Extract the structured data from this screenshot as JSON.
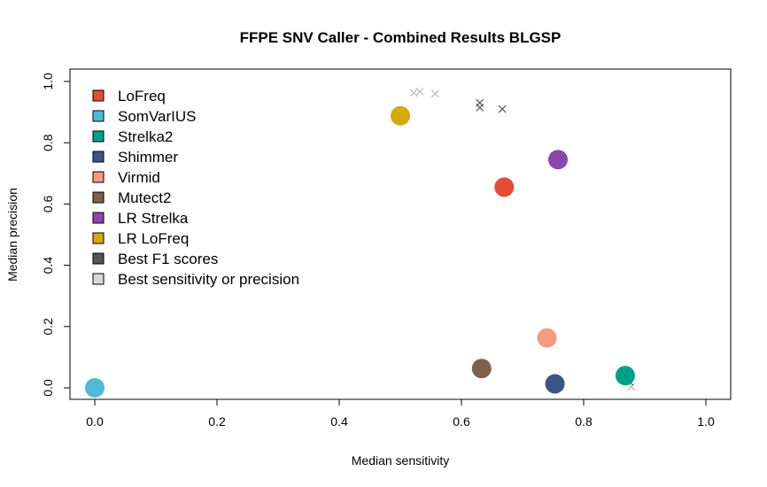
{
  "chart_data": {
    "type": "scatter",
    "title": "FFPE SNV Caller - Combined Results BLGSP",
    "xlabel": "Median sensitivity",
    "ylabel": "Median precision",
    "xlim": [
      0,
      1
    ],
    "ylim": [
      0,
      1
    ],
    "xticks": [
      "0.0",
      "0.2",
      "0.4",
      "0.6",
      "0.8",
      "1.0"
    ],
    "yticks": [
      "0.0",
      "0.2",
      "0.4",
      "0.6",
      "0.8",
      "1.0"
    ],
    "grid": false,
    "legend_position": "top-left",
    "series": [
      {
        "name": "LoFreq",
        "color": "#E64B35",
        "points": [
          {
            "x": 0.67,
            "y": 0.655
          }
        ]
      },
      {
        "name": "SomVarIUS",
        "color": "#4DBBD5",
        "points": [
          {
            "x": 0.0,
            "y": 0.0
          }
        ]
      },
      {
        "name": "Strelka2",
        "color": "#00A087",
        "points": [
          {
            "x": 0.868,
            "y": 0.04
          }
        ]
      },
      {
        "name": "Shimmer",
        "color": "#3C5488",
        "points": [
          {
            "x": 0.753,
            "y": 0.013
          }
        ]
      },
      {
        "name": "Virmid",
        "color": "#F39B7F",
        "points": [
          {
            "x": 0.74,
            "y": 0.163
          }
        ]
      },
      {
        "name": "Mutect2",
        "color": "#7E6148",
        "points": [
          {
            "x": 0.633,
            "y": 0.063
          }
        ]
      },
      {
        "name": "LR Strelka",
        "color": "#8E44AD",
        "points": [
          {
            "x": 0.758,
            "y": 0.745
          }
        ]
      },
      {
        "name": "LR LoFreq",
        "color": "#D4A90C",
        "points": [
          {
            "x": 0.5,
            "y": 0.888
          }
        ]
      }
    ],
    "best_f1_scores": {
      "name": "Best F1 scores",
      "color": "#555555",
      "points": [
        {
          "x": 0.63,
          "y": 0.93
        },
        {
          "x": 0.63,
          "y": 0.915
        },
        {
          "x": 0.667,
          "y": 0.91
        },
        {
          "x": 0.875,
          "y": 0.02
        }
      ]
    },
    "best_sensitivity_or_precision": {
      "name": "Best sensitivity or precision",
      "color": "#BBBBBB",
      "points": [
        {
          "x": 0.522,
          "y": 0.963
        },
        {
          "x": 0.532,
          "y": 0.967
        },
        {
          "x": 0.557,
          "y": 0.96
        },
        {
          "x": 0.878,
          "y": 0.003
        }
      ]
    }
  }
}
